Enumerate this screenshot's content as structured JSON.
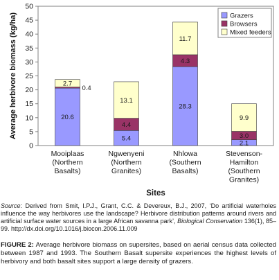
{
  "chart_data": {
    "type": "bar",
    "stacked": true,
    "categories": [
      [
        "Mooiplaas",
        "(Northern",
        "Basalts)"
      ],
      [
        "Ngwenyeni",
        "(Northern",
        "Granites)"
      ],
      [
        "Nhlowa",
        "(Southern",
        "Basalts)"
      ],
      [
        "Stevenson-",
        "Hamilton",
        "(Southern",
        "Granites)"
      ]
    ],
    "series": [
      {
        "name": "Grazers",
        "color": "#9999ff",
        "values": [
          20.6,
          5.4,
          28.3,
          2.1
        ]
      },
      {
        "name": "Browsers",
        "color": "#993366",
        "values": [
          0.4,
          4.4,
          4.3,
          3.0
        ]
      },
      {
        "name": "Mixed feeders",
        "color": "#ffffcc",
        "values": [
          2.7,
          13.1,
          11.7,
          9.9
        ]
      }
    ],
    "data_labels": [
      [
        "20.6",
        "0.4",
        "2.7"
      ],
      [
        "5.4",
        "4.4",
        "13.1"
      ],
      [
        "28.3",
        "4.3",
        "11.7"
      ],
      [
        "2.1",
        "3.0",
        "9.9"
      ]
    ],
    "xlabel": "Sites",
    "ylabel": "Average herbivore biomass (kg/ha)",
    "ylim": [
      0,
      50
    ],
    "yticks": [
      0,
      5,
      10,
      15,
      20,
      25,
      30,
      35,
      40,
      45,
      50
    ],
    "grid": false,
    "legend_position": "top-right"
  },
  "source": {
    "label": "Source",
    "text_before": ": Derived from Smit, I.P.J., Grant, C.C. & Devereux, B.J., 2007, ‘Do artificial waterholes influence the way herbivores use the landscape? Herbivore distribution patterns around rivers and artificial surface water sources in a large African savanna park’, ",
    "journal": "Biological Conservation",
    "text_after": " 136(1), 85–99. http://dx.doi.org/10.1016/j.biocon.2006.11.009"
  },
  "caption": {
    "label": "FIGURE 2:",
    "text": " Average herbivore biomass on supersites, based on aerial census data collected between 1987 and 1993. The Southern Basalt supersite experiences the highest levels of herbivory and both basalt sites support a large density of grazers."
  }
}
